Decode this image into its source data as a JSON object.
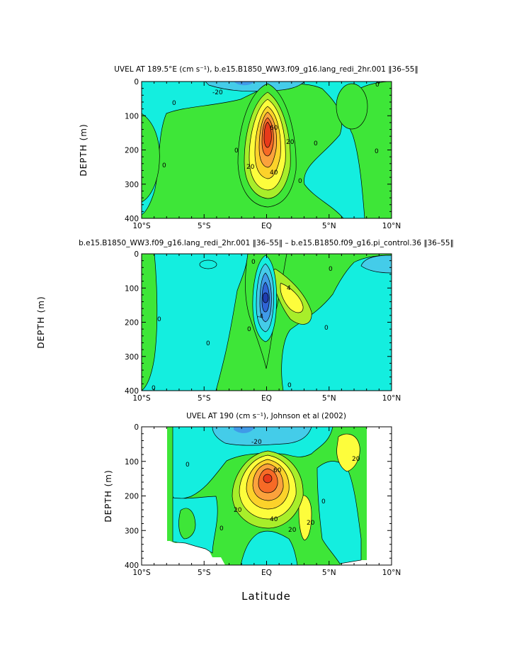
{
  "figure": {
    "xlabel": "Latitude"
  },
  "colors": {
    "neg3": "#2f64d6",
    "neg2": "#3f9ae8",
    "neg1": "#44cce9",
    "zero_neg": "#14eedf",
    "pos1": "#3ee638",
    "pos2": "#a8ee2a",
    "pos3": "#fdfd3c",
    "pos4": "#fcd22a",
    "pos5": "#fba23c",
    "pos6": "#f76a26",
    "pos7": "#e83a1a"
  },
  "chart_data": [
    {
      "type": "contour",
      "title": "UVEL AT 189.5°E (cm s⁻¹), b.e15.B1850_WW3.f09_g16.lang_redi_2hr.001 ‖36–55‖",
      "xlabel": "",
      "ylabel": "DEPTH (m)",
      "x_ticks": [
        "10°S",
        "5°S",
        "EQ",
        "5°N",
        "10°N"
      ],
      "y_ticks": [
        "0",
        "100",
        "200",
        "300",
        "400"
      ],
      "xlim": [
        -10,
        10
      ],
      "ylim": [
        400,
        0
      ],
      "contour_labels": [
        "-20",
        "0",
        "20",
        "40",
        "60",
        "0",
        "0",
        "20",
        "0",
        "0",
        "0",
        "0"
      ],
      "features": [
        {
          "name": "Equatorial Undercurrent core",
          "lat": 0,
          "depth": 160,
          "max_value": 80
        },
        {
          "name": "surface westward flow",
          "lat": 0,
          "depth": 10,
          "value": -20
        }
      ]
    },
    {
      "type": "contour",
      "title": "b.e15.B1850_WW3.f09_g16.lang_redi_2hr.001 ‖36–55‖ – b.e15.B1850.f09_g16.pi_control.36 ‖36–55‖",
      "xlabel": "",
      "ylabel": "DEPTH (m)",
      "x_ticks": [
        "10°S",
        "5°S",
        "EQ",
        "5°N",
        "10°N"
      ],
      "y_ticks": [
        "0",
        "100",
        "200",
        "300",
        "400"
      ],
      "xlim": [
        -10,
        10
      ],
      "ylim": [
        400,
        0
      ],
      "contour_labels": [
        "0",
        "4",
        "-4",
        "0",
        "0",
        "0",
        "0",
        "0",
        "0",
        "0"
      ],
      "features": [
        {
          "name": "negative difference core",
          "lat": 0,
          "depth": 130,
          "value": -16
        },
        {
          "name": "positive difference lobe",
          "lat": 2,
          "depth": 120,
          "value": 8
        }
      ]
    },
    {
      "type": "contour",
      "title": "UVEL AT 190 (cm s⁻¹), Johnson et al (2002)",
      "xlabel": "Latitude",
      "ylabel": "DEPTH (m)",
      "x_ticks": [
        "10°S",
        "5°S",
        "EQ",
        "5°N",
        "10°N"
      ],
      "y_ticks": [
        "0",
        "100",
        "200",
        "300",
        "400"
      ],
      "xlim": [
        -10,
        10
      ],
      "ylim": [
        400,
        0
      ],
      "contour_labels": [
        "-20",
        "0",
        "20",
        "40",
        "60",
        "20",
        "20",
        "20",
        "0",
        "0"
      ],
      "features": [
        {
          "name": "Equatorial Undercurrent core",
          "lat": 0,
          "depth": 150,
          "max_value": 90
        },
        {
          "name": "data coverage",
          "lat_range": [
            -8,
            8
          ]
        }
      ]
    }
  ]
}
